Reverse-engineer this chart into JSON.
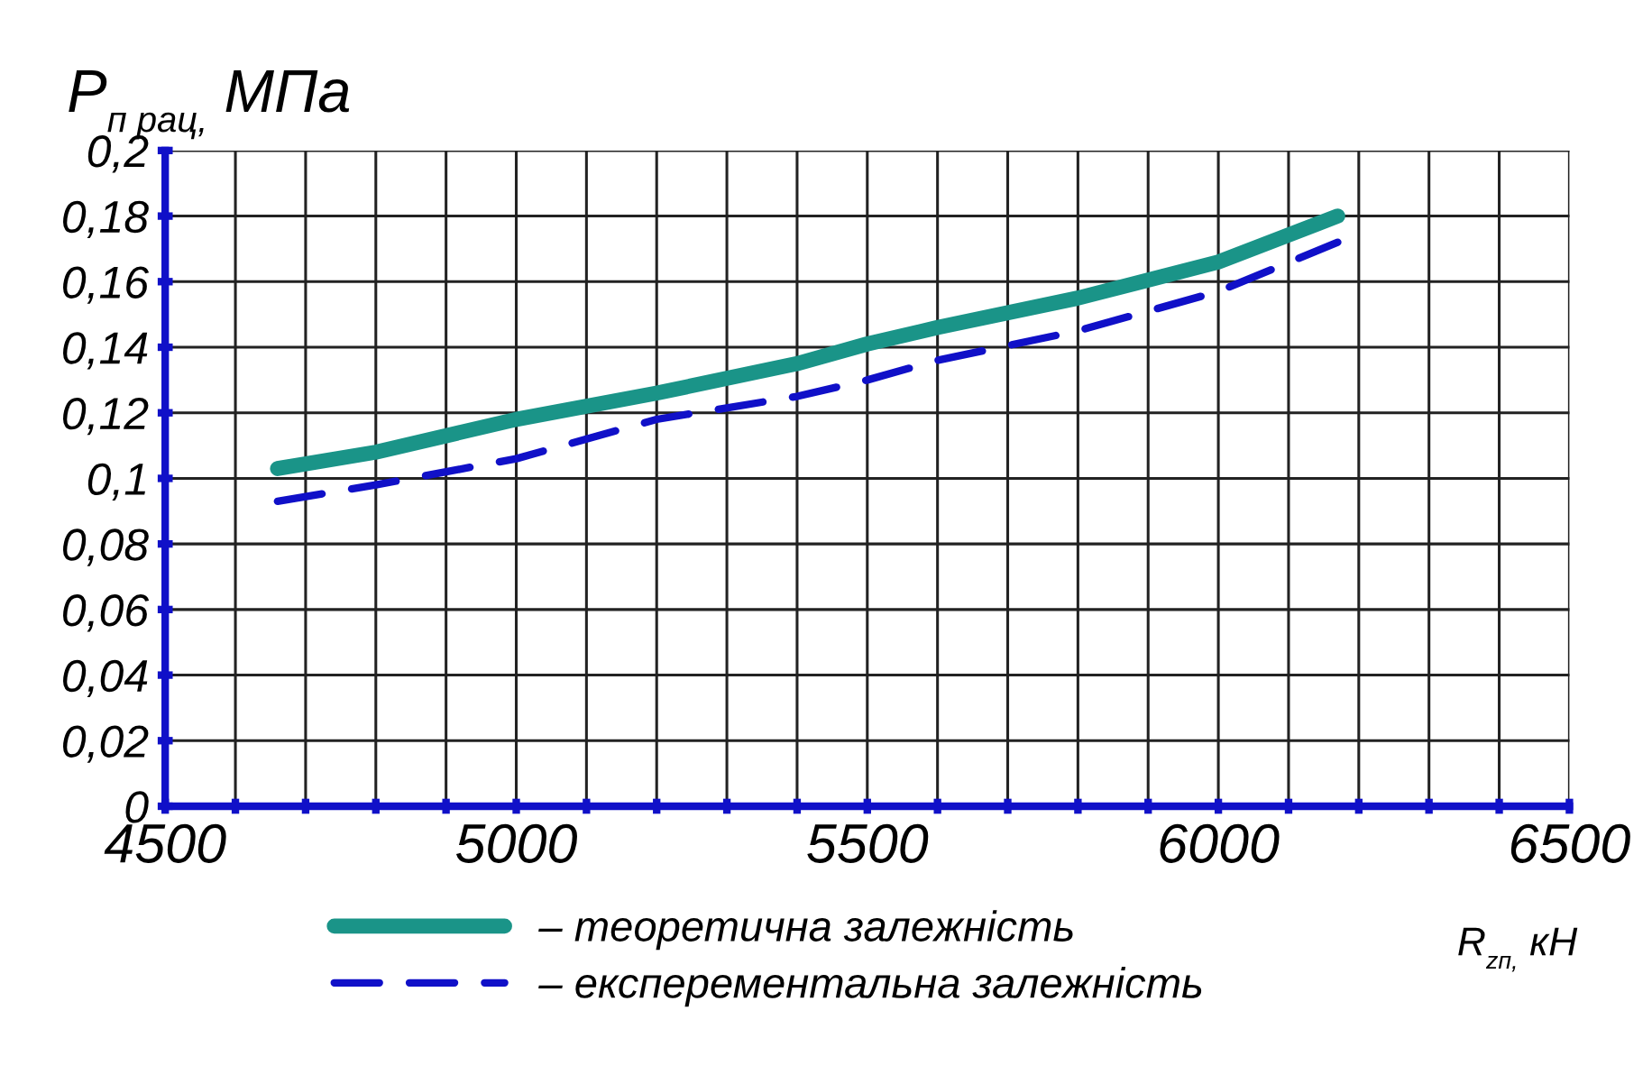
{
  "chart_data": {
    "type": "line",
    "ylabel": "P$_{п рац,}$ МПа",
    "xlabel": "R$_{zп,}$ кН",
    "series": [
      {
        "name": "– теоретична залежність",
        "color": "#1a9488",
        "line_style": "solid",
        "x": [
          4660,
          4800,
          5000,
          5200,
          5400,
          5500,
          5600,
          5800,
          6000,
          6170
        ],
        "values": [
          0.103,
          0.108,
          0.118,
          0.126,
          0.135,
          0.141,
          0.146,
          0.155,
          0.166,
          0.18
        ]
      },
      {
        "name": "– експерементальна залежність",
        "color": "#1010c8",
        "line_style": "dashed",
        "x": [
          4660,
          4800,
          5000,
          5200,
          5400,
          5500,
          5600,
          5800,
          6000,
          6170
        ],
        "values": [
          0.093,
          0.098,
          0.106,
          0.118,
          0.125,
          0.13,
          0.136,
          0.145,
          0.157,
          0.172
        ]
      }
    ],
    "xlim": [
      4500,
      6500
    ],
    "xticks": [
      4500,
      {
        "value": 4600,
        "label": null
      },
      {
        "value": 4700,
        "label": null
      },
      {
        "value": 4800,
        "label": null
      },
      {
        "value": 4900,
        "label": null
      },
      5000,
      {
        "value": 5100,
        "label": null
      },
      {
        "value": 5200,
        "label": null
      },
      {
        "value": 5300,
        "label": null
      },
      {
        "value": 5400,
        "label": null
      },
      5500,
      {
        "value": 5600,
        "label": null
      },
      {
        "value": 5700,
        "label": null
      },
      {
        "value": 5800,
        "label": null
      },
      {
        "value": 5900,
        "label": null
      },
      6000,
      {
        "value": 6100,
        "label": null
      },
      {
        "value": 6200,
        "label": null
      },
      {
        "value": 6300,
        "label": null
      },
      {
        "value": 6400,
        "label": null
      },
      6500
    ],
    "ylim": [
      0,
      0.2
    ],
    "yticks": [
      0,
      {
        "value": 0.02,
        "label": "0,02"
      },
      {
        "value": 0.04,
        "label": "0,04"
      },
      {
        "value": 0.06,
        "label": "0,06"
      },
      {
        "value": 0.08,
        "label": "0,08"
      },
      {
        "value": 0.1,
        "label": "0,1"
      },
      {
        "value": 0.12,
        "label": "0,12"
      },
      {
        "value": 0.14,
        "label": "0,14"
      },
      {
        "value": 0.16,
        "label": "0,16"
      },
      {
        "value": 0.18,
        "label": "0,18"
      },
      {
        "value": 0.2,
        "label": "0,2"
      }
    ],
    "grid": true,
    "legend": "bottom",
    "marker": "none"
  }
}
